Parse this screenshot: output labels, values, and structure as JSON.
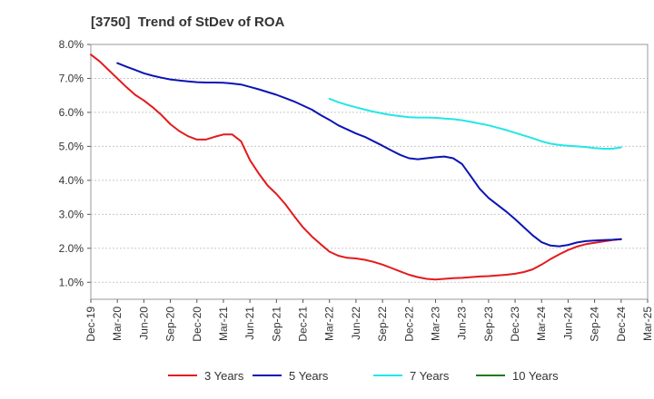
{
  "chart_data": {
    "type": "line",
    "title": "[3750]  Trend of StDev of ROA",
    "xlabel": "",
    "ylabel": "",
    "x_ticks": [
      "Dec-19",
      "Mar-20",
      "Jun-20",
      "Sep-20",
      "Dec-20",
      "Mar-21",
      "Jun-21",
      "Sep-21",
      "Dec-21",
      "Mar-22",
      "Jun-22",
      "Sep-22",
      "Dec-22",
      "Mar-23",
      "Jun-23",
      "Sep-23",
      "Dec-23",
      "Mar-24",
      "Jun-24",
      "Sep-24",
      "Dec-24",
      "Mar-25"
    ],
    "y_ticks": [
      "1.0%",
      "2.0%",
      "3.0%",
      "4.0%",
      "5.0%",
      "6.0%",
      "7.0%",
      "8.0%"
    ],
    "ylim": [
      0.5,
      8.0
    ],
    "grid": "horizontal",
    "legend_position": "bottom",
    "series": [
      {
        "name": "3 Years",
        "color": "#e31a1c",
        "points": [
          [
            "Dec-19",
            7.7
          ],
          [
            "Jan-20",
            7.5
          ],
          [
            "Feb-20",
            7.25
          ],
          [
            "Mar-20",
            7.0
          ],
          [
            "Apr-20",
            6.75
          ],
          [
            "May-20",
            6.52
          ],
          [
            "Jun-20",
            6.35
          ],
          [
            "Jul-20",
            6.15
          ],
          [
            "Aug-20",
            5.92
          ],
          [
            "Sep-20",
            5.65
          ],
          [
            "Oct-20",
            5.45
          ],
          [
            "Nov-20",
            5.3
          ],
          [
            "Dec-20",
            5.2
          ],
          [
            "Jan-21",
            5.2
          ],
          [
            "Feb-21",
            5.28
          ],
          [
            "Mar-21",
            5.35
          ],
          [
            "Apr-21",
            5.35
          ],
          [
            "May-21",
            5.15
          ],
          [
            "Jun-21",
            4.6
          ],
          [
            "Jul-21",
            4.2
          ],
          [
            "Aug-21",
            3.85
          ],
          [
            "Sep-21",
            3.6
          ],
          [
            "Oct-21",
            3.3
          ],
          [
            "Nov-21",
            2.95
          ],
          [
            "Dec-21",
            2.62
          ],
          [
            "Jan-22",
            2.35
          ],
          [
            "Feb-22",
            2.12
          ],
          [
            "Mar-22",
            1.9
          ],
          [
            "Apr-22",
            1.78
          ],
          [
            "May-22",
            1.72
          ],
          [
            "Jun-22",
            1.7
          ],
          [
            "Jul-22",
            1.66
          ],
          [
            "Aug-22",
            1.6
          ],
          [
            "Sep-22",
            1.52
          ],
          [
            "Oct-22",
            1.42
          ],
          [
            "Nov-22",
            1.32
          ],
          [
            "Dec-22",
            1.22
          ],
          [
            "Jan-23",
            1.15
          ],
          [
            "Feb-23",
            1.1
          ],
          [
            "Mar-23",
            1.08
          ],
          [
            "Apr-23",
            1.1
          ],
          [
            "May-23",
            1.12
          ],
          [
            "Jun-23",
            1.13
          ],
          [
            "Jul-23",
            1.15
          ],
          [
            "Aug-23",
            1.17
          ],
          [
            "Sep-23",
            1.18
          ],
          [
            "Oct-23",
            1.2
          ],
          [
            "Nov-23",
            1.22
          ],
          [
            "Dec-23",
            1.25
          ],
          [
            "Jan-24",
            1.3
          ],
          [
            "Feb-24",
            1.38
          ],
          [
            "Mar-24",
            1.52
          ],
          [
            "Apr-24",
            1.68
          ],
          [
            "May-24",
            1.82
          ],
          [
            "Jun-24",
            1.95
          ],
          [
            "Jul-24",
            2.05
          ],
          [
            "Aug-24",
            2.12
          ],
          [
            "Sep-24",
            2.16
          ],
          [
            "Oct-24",
            2.2
          ],
          [
            "Nov-24",
            2.24
          ],
          [
            "Dec-24",
            2.27
          ]
        ]
      },
      {
        "name": "5 Years",
        "color": "#0a14b4",
        "points": [
          [
            "Mar-20",
            7.45
          ],
          [
            "Apr-20",
            7.35
          ],
          [
            "May-20",
            7.25
          ],
          [
            "Jun-20",
            7.15
          ],
          [
            "Jul-20",
            7.08
          ],
          [
            "Aug-20",
            7.02
          ],
          [
            "Sep-20",
            6.97
          ],
          [
            "Oct-20",
            6.94
          ],
          [
            "Nov-20",
            6.91
          ],
          [
            "Dec-20",
            6.89
          ],
          [
            "Jan-21",
            6.88
          ],
          [
            "Feb-21",
            6.88
          ],
          [
            "Mar-21",
            6.87
          ],
          [
            "Apr-21",
            6.85
          ],
          [
            "May-21",
            6.82
          ],
          [
            "Jun-21",
            6.75
          ],
          [
            "Jul-21",
            6.68
          ],
          [
            "Aug-21",
            6.6
          ],
          [
            "Sep-21",
            6.52
          ],
          [
            "Oct-21",
            6.42
          ],
          [
            "Nov-21",
            6.32
          ],
          [
            "Dec-21",
            6.2
          ],
          [
            "Jan-22",
            6.08
          ],
          [
            "Feb-22",
            5.92
          ],
          [
            "Mar-22",
            5.78
          ],
          [
            "Apr-22",
            5.62
          ],
          [
            "May-22",
            5.5
          ],
          [
            "Jun-22",
            5.38
          ],
          [
            "Jul-22",
            5.28
          ],
          [
            "Aug-22",
            5.15
          ],
          [
            "Sep-22",
            5.02
          ],
          [
            "Oct-22",
            4.88
          ],
          [
            "Nov-22",
            4.75
          ],
          [
            "Dec-22",
            4.65
          ],
          [
            "Jan-23",
            4.62
          ],
          [
            "Feb-23",
            4.65
          ],
          [
            "Mar-23",
            4.68
          ],
          [
            "Apr-23",
            4.7
          ],
          [
            "May-23",
            4.65
          ],
          [
            "Jun-23",
            4.48
          ],
          [
            "Jul-23",
            4.12
          ],
          [
            "Aug-23",
            3.75
          ],
          [
            "Sep-23",
            3.48
          ],
          [
            "Oct-23",
            3.28
          ],
          [
            "Nov-23",
            3.08
          ],
          [
            "Dec-23",
            2.86
          ],
          [
            "Jan-24",
            2.62
          ],
          [
            "Feb-24",
            2.38
          ],
          [
            "Mar-24",
            2.18
          ],
          [
            "Apr-24",
            2.08
          ],
          [
            "May-24",
            2.06
          ],
          [
            "Jun-24",
            2.1
          ],
          [
            "Jul-24",
            2.17
          ],
          [
            "Aug-24",
            2.21
          ],
          [
            "Sep-24",
            2.23
          ],
          [
            "Oct-24",
            2.24
          ],
          [
            "Nov-24",
            2.25
          ],
          [
            "Dec-24",
            2.27
          ]
        ]
      },
      {
        "name": "7 Years",
        "color": "#22e6e6",
        "points": [
          [
            "Mar-22",
            6.4
          ],
          [
            "Apr-22",
            6.3
          ],
          [
            "May-22",
            6.22
          ],
          [
            "Jun-22",
            6.15
          ],
          [
            "Jul-22",
            6.08
          ],
          [
            "Aug-22",
            6.02
          ],
          [
            "Sep-22",
            5.97
          ],
          [
            "Oct-22",
            5.92
          ],
          [
            "Nov-22",
            5.89
          ],
          [
            "Dec-22",
            5.86
          ],
          [
            "Jan-23",
            5.85
          ],
          [
            "Feb-23",
            5.85
          ],
          [
            "Mar-23",
            5.84
          ],
          [
            "Apr-23",
            5.82
          ],
          [
            "May-23",
            5.8
          ],
          [
            "Jun-23",
            5.77
          ],
          [
            "Jul-23",
            5.72
          ],
          [
            "Aug-23",
            5.67
          ],
          [
            "Sep-23",
            5.62
          ],
          [
            "Oct-23",
            5.55
          ],
          [
            "Nov-23",
            5.48
          ],
          [
            "Dec-23",
            5.4
          ],
          [
            "Jan-24",
            5.32
          ],
          [
            "Feb-24",
            5.24
          ],
          [
            "Mar-24",
            5.15
          ],
          [
            "Apr-24",
            5.08
          ],
          [
            "May-24",
            5.04
          ],
          [
            "Jun-24",
            5.02
          ],
          [
            "Jul-24",
            5.0
          ],
          [
            "Aug-24",
            4.98
          ],
          [
            "Sep-24",
            4.95
          ],
          [
            "Oct-24",
            4.93
          ],
          [
            "Nov-24",
            4.93
          ],
          [
            "Dec-24",
            4.97
          ]
        ]
      },
      {
        "name": "10 Years",
        "color": "#1a7a1a",
        "points": []
      }
    ]
  }
}
